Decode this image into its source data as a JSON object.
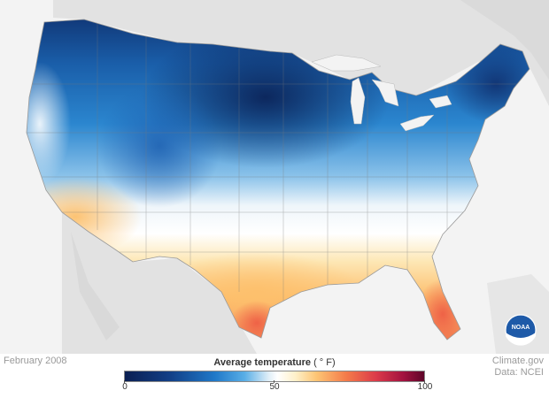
{
  "map": {
    "date_label": "February 2008",
    "credit_line1": "Climate.gov",
    "credit_line2": "Data: NCEI",
    "logo_text": "NOAA",
    "legend": {
      "title": "Average temperature",
      "unit": "( ° F)",
      "ticks": [
        "0",
        "50",
        "100"
      ],
      "min": 0,
      "max": 100
    },
    "colors": {
      "cold": "#0b1f52",
      "cool": "#1f78c8",
      "neutral": "#ffffff",
      "warm": "#fdc574",
      "hot": "#f47b4a",
      "hottest": "#5e0529",
      "land_outside": "#e2e2e2",
      "water": "#f3f3f3"
    }
  }
}
